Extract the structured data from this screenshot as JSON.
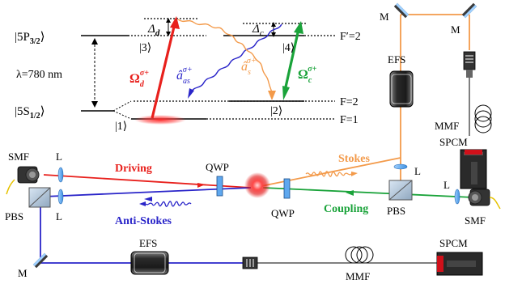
{
  "energy_levels": {
    "p32": {
      "prefix": "|5P",
      "sub": "3/2",
      "suffix": "⟩"
    },
    "s12": {
      "prefix": "|5S",
      "sub": "1/2",
      "suffix": "⟩"
    },
    "wavelength": "λ=780 nm",
    "state3": "|3⟩",
    "state4": "|4⟩",
    "state1": "|1⟩",
    "state2": "|2⟩",
    "f_prime_2": "F′=2",
    "f2": "F=2",
    "f1": "F=1",
    "delta_d": {
      "main": "Δ",
      "sub": "d"
    },
    "delta_c": {
      "main": "Δ",
      "sub": "c"
    },
    "omega_d": {
      "main": "Ω",
      "sub": "d",
      "sup": "σ+"
    },
    "omega_c": {
      "main": "Ω",
      "sub": "c",
      "sup": "σ+"
    },
    "a_as": {
      "main": "â",
      "sub": "as",
      "sup": "σ+"
    },
    "a_s": {
      "main": "â",
      "sub": "s",
      "sup": "σ+"
    }
  },
  "optics": {
    "smf_left": "SMF",
    "l_top_left": "L",
    "l_bottom_left": "L",
    "pbs_left": "PBS",
    "m_bottom_left": "M",
    "driving": "Driving",
    "anti_stokes": "Anti-Stokes",
    "qwp_left": "QWP",
    "qwp_right": "QWP",
    "stokes": "Stokes",
    "coupling": "Coupling",
    "pbs_right": "PBS",
    "l_right": "L",
    "l_stokes": "L",
    "smf_right": "SMF",
    "m_top_left": "M",
    "m_top_right": "M",
    "efs_top": "EFS",
    "mmf_top": "MMF",
    "spcm_top": "SPCM",
    "efs_bottom": "EFS",
    "mmf_bottom": "MMF",
    "spcm_bottom": "SPCM"
  },
  "colors": {
    "driving": "#e8201c",
    "anti_stokes": "#2a25c9",
    "stokes": "#f39a4a",
    "coupling": "#1aa33a",
    "detector_red": "#d0101a"
  }
}
